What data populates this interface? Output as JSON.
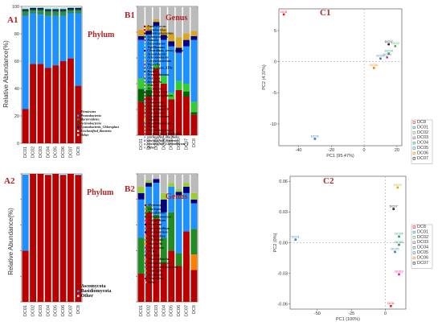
{
  "chart_data": [
    {
      "id": "A1",
      "type": "bar",
      "stacked": true,
      "title": "Phylum",
      "ylabel": "Relative Abundance(%)",
      "ylim": [
        0,
        100
      ],
      "yticks": [
        "0",
        "20",
        "40",
        "60",
        "80",
        "100"
      ],
      "categories": [
        "DC01",
        "DC02",
        "DC03",
        "DC04",
        "DC05",
        "DC06",
        "DC07",
        "DC8"
      ],
      "legend_position": "right-inside",
      "series": [
        {
          "name": "Firmicutes",
          "color": "#b80000",
          "values": [
            25,
            58,
            58,
            55,
            57,
            60,
            62,
            42
          ]
        },
        {
          "name": "Proteobacteria",
          "color": "#1e90ff",
          "values": [
            68,
            37,
            36,
            38,
            36,
            33,
            33,
            53
          ]
        },
        {
          "name": "Bacteroidetes",
          "color": "#2e8b57",
          "values": [
            3,
            2,
            3,
            3,
            3,
            3,
            2,
            2
          ]
        },
        {
          "name": "Actinobacteria",
          "color": "#006400",
          "values": [
            1,
            1,
            1,
            1,
            1,
            1,
            1,
            1
          ]
        },
        {
          "name": "Cyanobacteria_Chloroplast",
          "color": "#000080",
          "values": [
            1,
            1,
            1,
            1,
            1,
            1,
            1,
            1
          ]
        },
        {
          "name": "Unclassified_Bacteria",
          "color": "#7fffd4",
          "values": [
            1,
            0.5,
            0.5,
            1,
            1,
            1,
            0.5,
            0.5
          ]
        },
        {
          "name": "Other",
          "color": "#dddddd",
          "values": [
            1,
            0.5,
            0.5,
            1,
            1,
            1,
            0.5,
            0.5
          ]
        }
      ]
    },
    {
      "id": "B1",
      "type": "bar",
      "stacked": true,
      "title": "Genus",
      "ylim": [
        0,
        100
      ],
      "categories": [
        "DC01",
        "DC02",
        "DC03",
        "DC04",
        "DC05",
        "DC06",
        "DC07",
        "DC8"
      ],
      "legend_position": "right",
      "series": [
        {
          "name": "Enterococcus",
          "color": "#b80000",
          "values": [
            26,
            30,
            52,
            40,
            28,
            35,
            30,
            16
          ]
        },
        {
          "name": "Lactobacillus",
          "color": "#ff0000",
          "values": [
            0,
            0,
            0,
            0,
            0,
            0,
            0,
            0
          ]
        },
        {
          "name": "Stenotrophomonas",
          "color": "#8b0000",
          "values": [
            0,
            0,
            0,
            0,
            0,
            0,
            0,
            0
          ]
        },
        {
          "name": "Sphingomonas",
          "color": "#006400",
          "values": [
            10,
            5,
            0,
            0,
            0,
            0,
            4,
            2
          ]
        },
        {
          "name": "Pantoea",
          "color": "#ff1493",
          "values": [
            0,
            0,
            0,
            0,
            0,
            0,
            0,
            0
          ]
        },
        {
          "name": "Enterobacter",
          "color": "#32cd32",
          "values": [
            8,
            5,
            3,
            6,
            5,
            7,
            6,
            8
          ]
        },
        {
          "name": "Tepidimonas",
          "color": "#1e90ff",
          "values": [
            30,
            38,
            30,
            28,
            36,
            22,
            29,
            48
          ]
        },
        {
          "name": "Clostridium_sensu_stricto",
          "color": "#00008b",
          "values": [
            3,
            3,
            3,
            4,
            4,
            4,
            5,
            3
          ]
        },
        {
          "name": "Acinetobacter",
          "color": "#daa520",
          "values": [
            5,
            4,
            2,
            5,
            6,
            8,
            5,
            4
          ]
        },
        {
          "name": "Other",
          "color": "#bbbbbb",
          "values": [
            18,
            15,
            10,
            17,
            21,
            24,
            21,
            19
          ]
        }
      ],
      "legend_entries": [
        "Enterococcus",
        "Lactobacillus",
        "Stenotrophomonas",
        "Sphingomonas",
        "Pantoea",
        "Enterobacter",
        "Tepidimonas",
        "Clostridium_sensu_stricto",
        "Acinetobacter",
        "Achromobacter",
        "Corynebacterium",
        "Weissella",
        "Clostridium_XIVa",
        "Bacillus",
        "Brevundimonas",
        "Myroides",
        "Bordetella",
        "Shinella",
        "Rhizobium",
        "Ochrobactrum",
        "Novosphingobium",
        "Serratia",
        "Leuconostoc",
        "Pseudomonas",
        "Clostridium_IV",
        "Paludibacter",
        "Flavobacterium",
        "Massilia",
        "Brachybacterium",
        "Proteus",
        "Chryseobacterium",
        "unclassified_Rhizobiales",
        "unclassified_Bacillales",
        "unclassified_Bacteria",
        "unclassified_Clostridiaceae_1",
        "Other"
      ]
    },
    {
      "id": "C1",
      "type": "scatter",
      "xlabel": "PC1 (95.47%)",
      "ylabel": "PC2 (4.37%)",
      "xlim": [
        -52,
        23
      ],
      "ylim": [
        -13.5,
        8.5
      ],
      "xticks": [
        -40,
        -20,
        0,
        20
      ],
      "yticks": [
        -10,
        -5,
        0,
        5
      ],
      "legend_position": "right",
      "points": [
        {
          "name": "DC8",
          "x": -49,
          "y": 7.6,
          "color": "#e41a1c"
        },
        {
          "name": "DC01",
          "x": -30,
          "y": -12.4,
          "color": "#377eb8"
        },
        {
          "name": "DC02",
          "x": 19,
          "y": 2.5,
          "color": "#4daf4a"
        },
        {
          "name": "DC03",
          "x": 14,
          "y": 0.7,
          "color": "#984ea3"
        },
        {
          "name": "DC04",
          "x": 15,
          "y": 1.3,
          "color": "#1b9e77"
        },
        {
          "name": "DC05",
          "x": 10,
          "y": 0.5,
          "color": "#377eb8"
        },
        {
          "name": "DC06",
          "x": 6,
          "y": -1.0,
          "color": "#ff7f00"
        },
        {
          "name": "DC07",
          "x": 15,
          "y": 2.8,
          "color": "#222222"
        }
      ]
    },
    {
      "id": "A2",
      "type": "bar",
      "stacked": true,
      "title": "Phylum",
      "ylabel": "Relative Abundance(%)",
      "ylim": [
        0,
        100
      ],
      "categories": [
        "DC01",
        "DC02",
        "DC03",
        "DC04",
        "DC05",
        "DC06",
        "DC07",
        "DC8"
      ],
      "legend_position": "right",
      "series": [
        {
          "name": "Ascomycota",
          "color": "#b80000",
          "values": [
            40,
            100,
            100,
            99,
            100,
            99,
            100,
            99
          ]
        },
        {
          "name": "Basidiomycota",
          "color": "#1e90ff",
          "values": [
            59.5,
            0,
            0,
            0.5,
            0,
            0.5,
            0,
            0.5
          ]
        },
        {
          "name": "Other",
          "color": "#dddddd",
          "values": [
            0.5,
            0,
            0,
            0.5,
            0,
            0.5,
            0,
            0.5
          ]
        }
      ]
    },
    {
      "id": "B2",
      "type": "bar",
      "stacked": true,
      "title": "Genus",
      "ylim": [
        0,
        100
      ],
      "categories": [
        "DC01",
        "DC02",
        "DC03",
        "DC04",
        "DC05",
        "DC06",
        "DC07",
        "DC8"
      ],
      "legend_position": "right",
      "series": [
        {
          "name": "Meyerozyma",
          "color": "#b80000",
          "values": [
            22,
            70,
            65,
            30,
            40,
            28,
            55,
            25
          ]
        },
        {
          "name": "Clavispora",
          "color": "#ff7f00",
          "values": [
            0,
            0,
            0,
            0,
            0,
            0,
            0,
            12
          ]
        },
        {
          "name": "Pseudozyma",
          "color": "#228b22",
          "values": [
            28,
            5,
            3,
            20,
            30,
            10,
            0,
            20
          ]
        },
        {
          "name": "Pichia",
          "color": "#1e90ff",
          "values": [
            30,
            15,
            25,
            20,
            20,
            45,
            30,
            20
          ]
        },
        {
          "name": "Fusarium",
          "color": "#000080",
          "values": [
            5,
            3,
            3,
            10,
            0,
            3,
            5,
            3
          ]
        },
        {
          "name": "Aspergillus",
          "color": "#9acd32",
          "values": [
            5,
            2,
            0,
            5,
            3,
            2,
            3,
            5
          ]
        },
        {
          "name": "Other",
          "color": "#bbbbbb",
          "values": [
            10,
            5,
            4,
            15,
            7,
            12,
            7,
            15
          ]
        }
      ],
      "legend_entries": [
        "Meyerozyma",
        "Clavispora",
        "Pseudozyma",
        "Sterigmatomyces",
        "Apiotrichum",
        "Fusarium",
        "Aureobasidium",
        "Cladosporium",
        "Sphaerulina",
        "Tilletiopsis",
        "Alternaria",
        "Nigrospora",
        "Pichia",
        "Candida",
        "Phaeosphaeria",
        "Sterigmatomyces",
        "Cutaneotrichosporon",
        "Aspergillus",
        "Kodamaea",
        "Penicillium",
        "Other"
      ]
    },
    {
      "id": "C2",
      "type": "scatter",
      "xlabel": "PC1 (100%)",
      "ylabel": "PC2 (0%)",
      "xlim": [
        -70,
        15
      ],
      "ylim": [
        -0.065,
        0.065
      ],
      "xticks": [
        -50,
        -25,
        0
      ],
      "yticks": [
        -0.06,
        -0.03,
        0.0,
        0.03,
        0.06
      ],
      "legend_position": "right",
      "points": [
        {
          "name": "DC01",
          "x": -66,
          "y": 0.003,
          "color": "#377eb8"
        },
        {
          "name": "DC02",
          "x": 9,
          "y": 0.054,
          "color": "#daa520"
        },
        {
          "name": "DC07",
          "x": 6,
          "y": 0.033,
          "color": "#222222"
        },
        {
          "name": "DC04",
          "x": 10,
          "y": 0.006,
          "color": "#1b9e77"
        },
        {
          "name": "DC05",
          "x": 7,
          "y": -0.009,
          "color": "#377eb8"
        },
        {
          "name": "DC06",
          "x": 10,
          "y": -0.002,
          "color": "#2e8b57"
        },
        {
          "name": "DC03",
          "x": 10,
          "y": -0.031,
          "color": "#ff1493"
        },
        {
          "name": "DC8",
          "x": 4,
          "y": -0.062,
          "color": "#e41a1c"
        }
      ]
    }
  ],
  "panels": {
    "A1": {
      "letter": "A1"
    },
    "B1": {
      "letter": "B1"
    },
    "C1": {
      "letter": "C1"
    },
    "A2": {
      "letter": "A2"
    },
    "B2": {
      "letter": "B2"
    },
    "C2": {
      "letter": "C2"
    }
  },
  "pca_legend": [
    "DC8",
    "DC01",
    "DC02",
    "DC03",
    "DC04",
    "DC05",
    "DC06",
    "DC07"
  ],
  "pca_legend_colors": [
    "#e41a1c",
    "#377eb8",
    "#4daf4a",
    "#984ea3",
    "#1b9e77",
    "#377eb8",
    "#ff7f00",
    "#222222"
  ]
}
